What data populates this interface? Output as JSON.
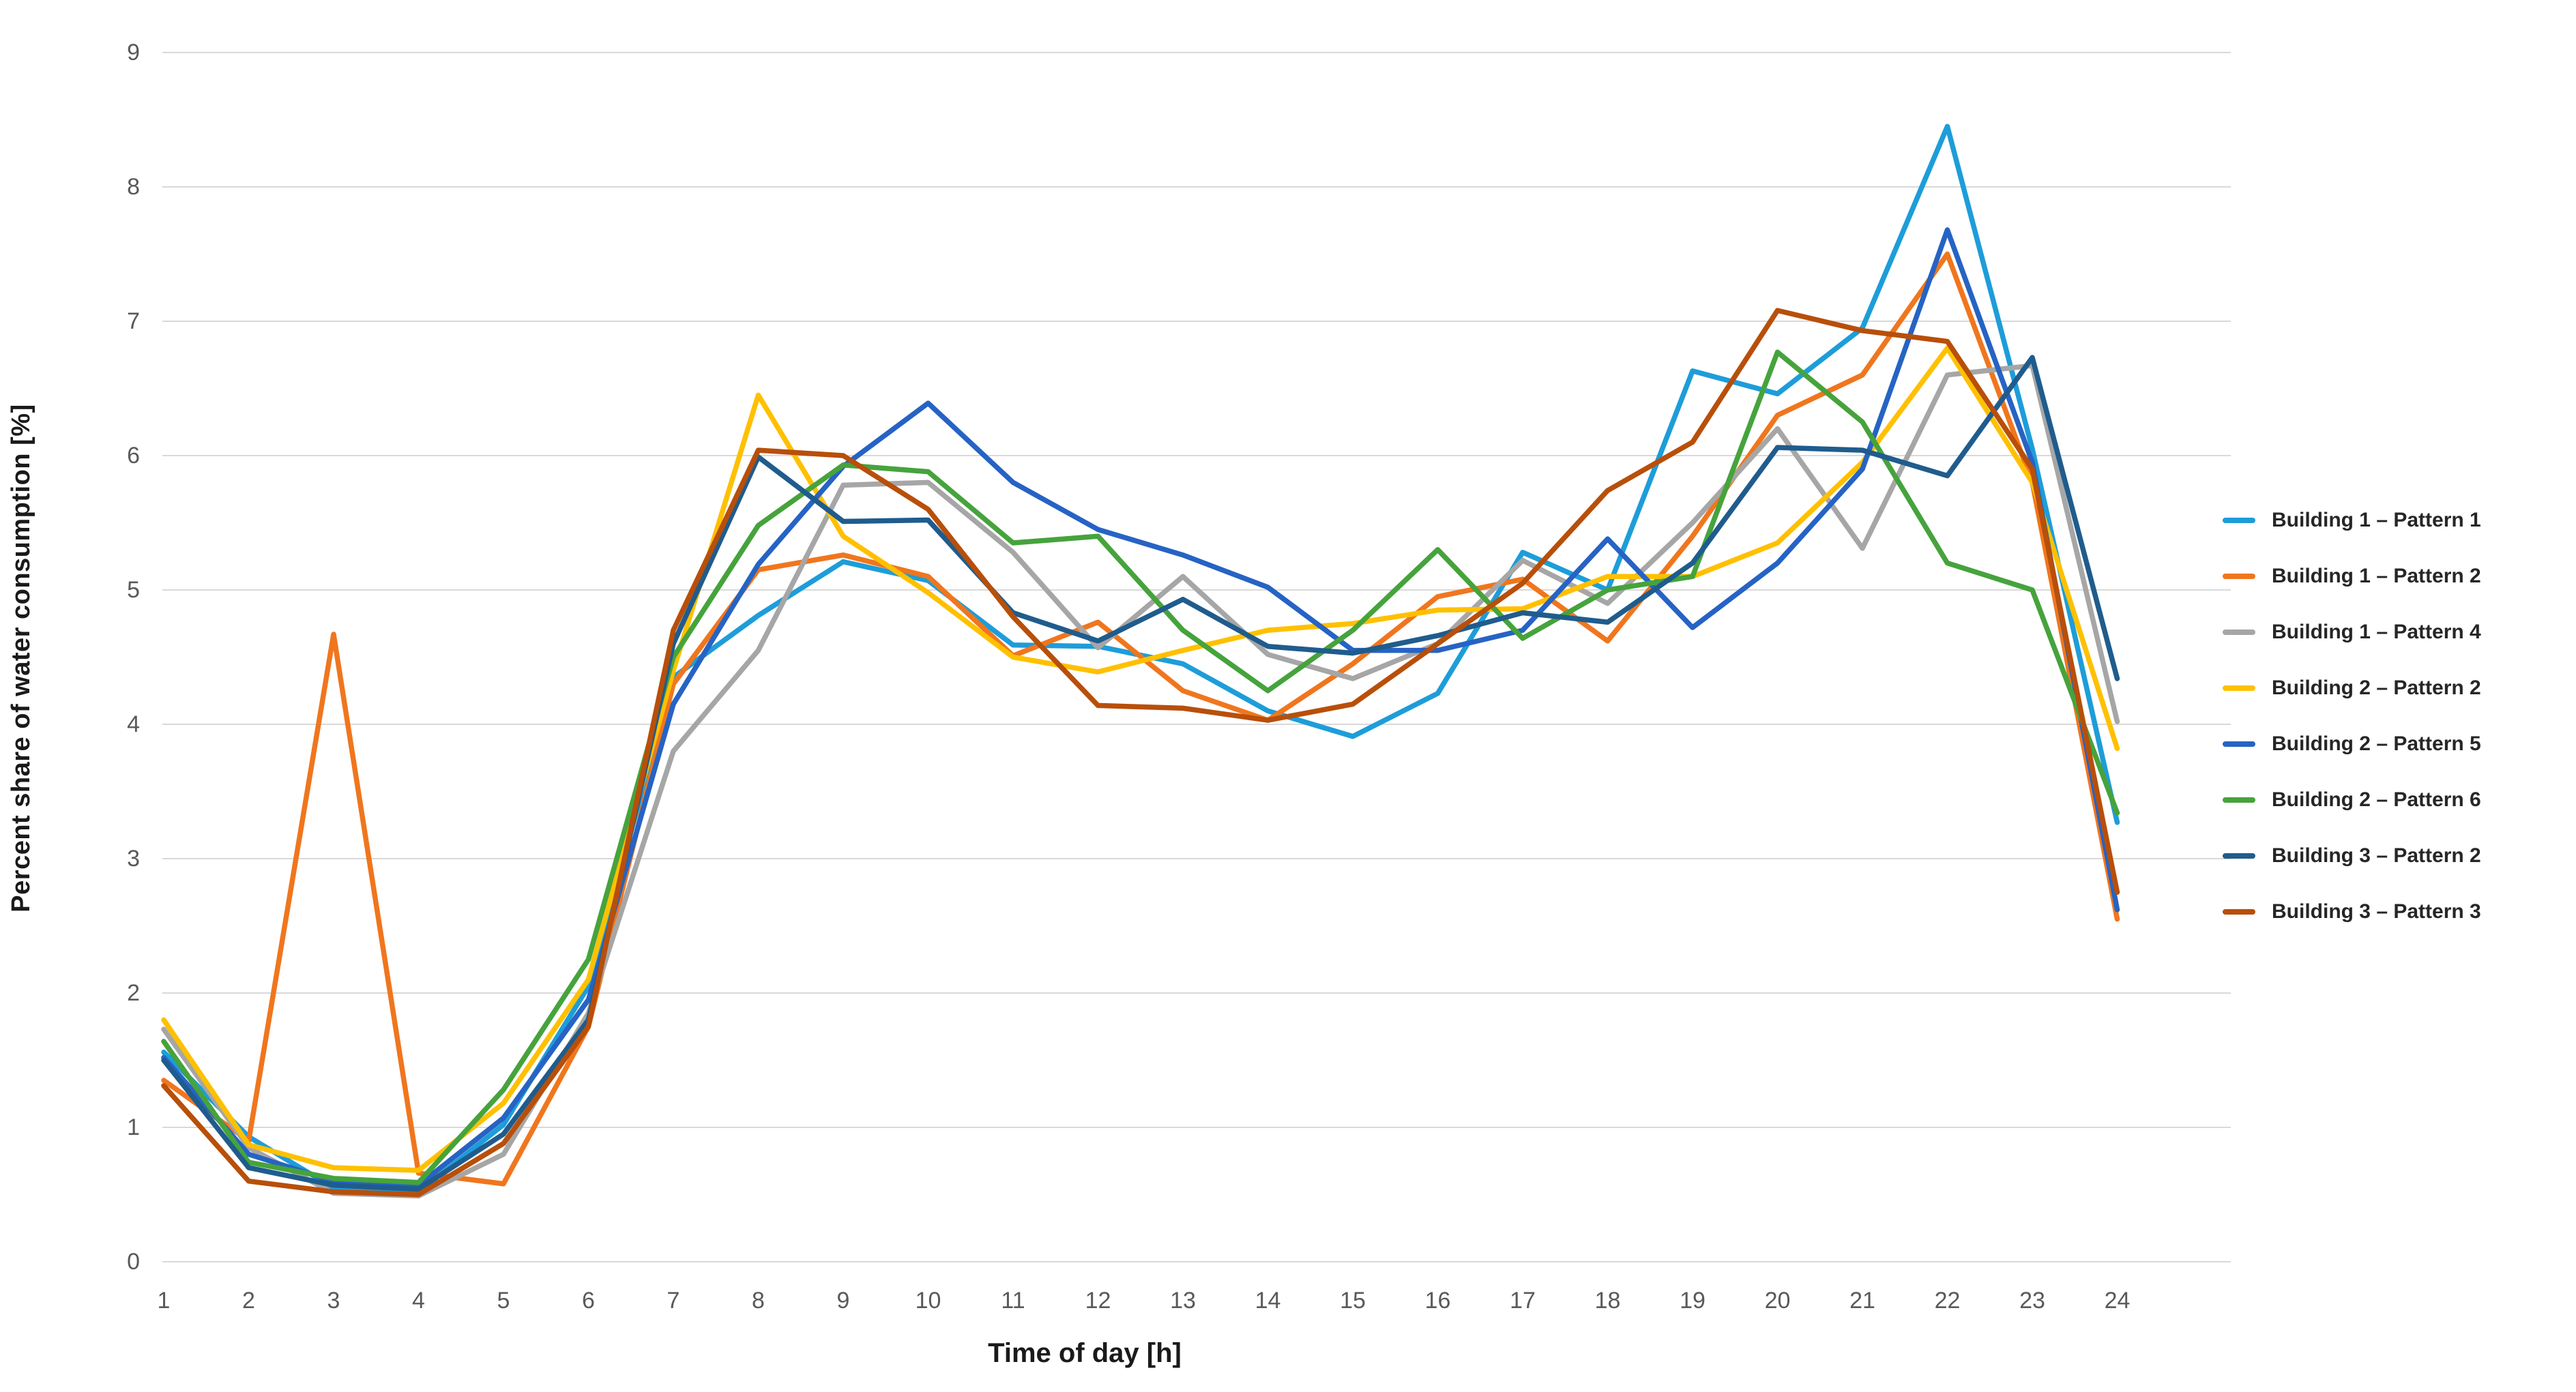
{
  "colors": {
    "background": "#FFFFFF",
    "gridline": "#D9D9D9",
    "tick_label": "#595959",
    "axis_title": "#1A1A1A",
    "legend_text": "#262626"
  },
  "chart_data": {
    "type": "line",
    "title": "",
    "xlabel": "Time of day [h]",
    "ylabel": "Percent share of water consumption [%]",
    "x": [
      1,
      2,
      3,
      4,
      5,
      6,
      7,
      8,
      9,
      10,
      11,
      12,
      13,
      14,
      15,
      16,
      17,
      18,
      19,
      20,
      21,
      22,
      23,
      24
    ],
    "yticks": [
      0,
      1,
      2,
      3,
      4,
      5,
      6,
      7,
      8,
      9
    ],
    "ylim": [
      0,
      9
    ],
    "grid": "horizontal",
    "legend_position": "right",
    "series": [
      {
        "name": "Building 1 – Pattern 1",
        "color": "#1D9DD9",
        "values": [
          1.56,
          0.93,
          0.55,
          0.52,
          1.02,
          2.05,
          4.35,
          4.81,
          5.21,
          5.07,
          4.59,
          4.58,
          4.45,
          4.1,
          3.91,
          4.23,
          5.28,
          5.0,
          6.63,
          6.46,
          6.95,
          8.45,
          6.05,
          3.27
        ]
      },
      {
        "name": "Building 1 – Pattern 2",
        "color": "#F0761E",
        "values": [
          1.35,
          0.9,
          4.67,
          0.66,
          0.58,
          1.75,
          4.3,
          5.15,
          5.26,
          5.1,
          4.51,
          4.76,
          4.25,
          4.03,
          4.45,
          4.95,
          5.08,
          4.62,
          5.4,
          6.3,
          6.6,
          7.5,
          5.8,
          2.55
        ]
      },
      {
        "name": "Building 1 – Pattern 4",
        "color": "#A6A6A6",
        "values": [
          1.73,
          0.85,
          0.51,
          0.49,
          0.8,
          1.85,
          3.8,
          4.55,
          5.78,
          5.8,
          5.28,
          4.57,
          5.1,
          4.52,
          4.34,
          4.6,
          5.22,
          4.9,
          5.5,
          6.2,
          5.31,
          6.6,
          6.67,
          4.02
        ]
      },
      {
        "name": "Building 2 – Pattern 2",
        "color": "#FFC000",
        "values": [
          1.8,
          0.87,
          0.7,
          0.68,
          1.18,
          2.1,
          4.4,
          6.45,
          5.4,
          4.98,
          4.5,
          4.39,
          4.55,
          4.7,
          4.75,
          4.85,
          4.86,
          5.1,
          5.1,
          5.35,
          5.95,
          6.8,
          5.8,
          3.82
        ]
      },
      {
        "name": "Building 2 – Pattern 5",
        "color": "#2663C4",
        "values": [
          1.52,
          0.8,
          0.6,
          0.57,
          1.07,
          1.95,
          4.15,
          5.19,
          5.92,
          6.39,
          5.8,
          5.45,
          5.26,
          5.02,
          4.55,
          4.55,
          4.7,
          5.38,
          4.72,
          5.2,
          5.9,
          7.68,
          5.95,
          2.62
        ]
      },
      {
        "name": "Building 2 – Pattern 6",
        "color": "#46A33C",
        "values": [
          1.64,
          0.74,
          0.62,
          0.59,
          1.28,
          2.25,
          4.5,
          5.48,
          5.93,
          5.88,
          5.35,
          5.4,
          4.7,
          4.25,
          4.7,
          5.3,
          4.64,
          5.0,
          5.1,
          6.77,
          6.25,
          5.2,
          5.0,
          3.34
        ]
      },
      {
        "name": "Building 3 – Pattern 2",
        "color": "#1F5C8D",
        "values": [
          1.5,
          0.7,
          0.57,
          0.54,
          0.95,
          1.8,
          4.6,
          5.99,
          5.51,
          5.52,
          4.83,
          4.62,
          4.93,
          4.58,
          4.53,
          4.66,
          4.83,
          4.76,
          5.2,
          6.06,
          6.04,
          5.85,
          6.73,
          4.34
        ]
      },
      {
        "name": "Building 3 – Pattern 3",
        "color": "#B84F0A",
        "values": [
          1.31,
          0.6,
          0.52,
          0.5,
          0.88,
          1.75,
          4.7,
          6.04,
          6.0,
          5.6,
          4.8,
          4.14,
          4.12,
          4.03,
          4.15,
          4.6,
          5.05,
          5.74,
          6.1,
          7.08,
          6.93,
          6.85,
          5.9,
          2.75
        ]
      }
    ]
  }
}
